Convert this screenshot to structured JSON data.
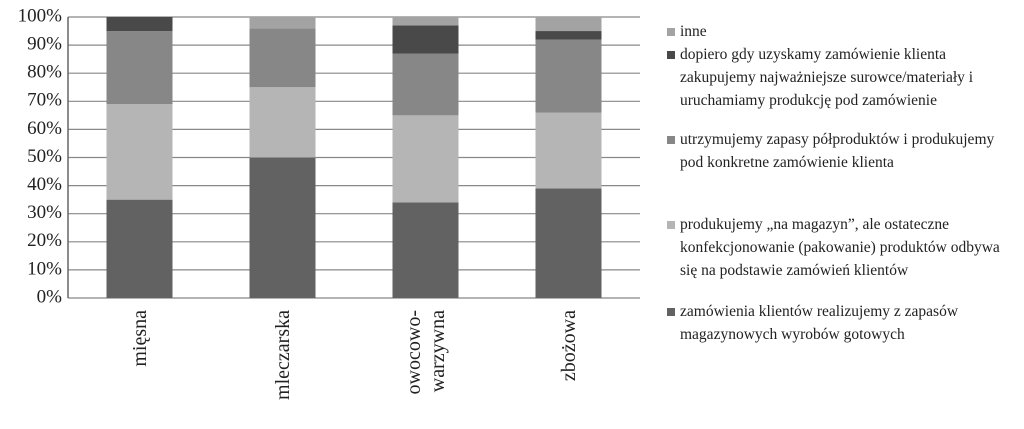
{
  "chart_data": {
    "type": "stacked_bar",
    "categories": [
      "mięsna",
      "mleczarska",
      "owocowo-warzywna",
      "zbożowa"
    ],
    "series": [
      {
        "name": "zamówienia klientów realizujemy z zapasów magazynowych wyrobów gotowych",
        "color": "#626262",
        "values": [
          35,
          50,
          34,
          39
        ]
      },
      {
        "name": "produkujemy „na magazyn”, ale ostateczne konfekcjonowanie (pakowanie) produktów odbywa się na podstawie zamówień klientów",
        "color": "#b5b5b5",
        "values": [
          34,
          25,
          31,
          27
        ]
      },
      {
        "name": "utrzymujemy zapasy półproduktów i produkujemy pod konkretne zamówienie klienta",
        "color": "#878787",
        "values": [
          26,
          21,
          22,
          26
        ]
      },
      {
        "name": "dopiero gdy uzyskamy zamówienie klienta zakupujemy najważniejsze surowce/materiały i uruchamiamy produkcję pod zamówienie",
        "color": "#494949",
        "values": [
          5,
          0,
          10,
          3
        ]
      },
      {
        "name": "inne",
        "color": "#a3a3a3",
        "values": [
          0,
          4,
          3,
          5
        ]
      }
    ],
    "ylim": [
      0,
      100
    ],
    "yticks": [
      {
        "value": 0,
        "label": "0%"
      },
      {
        "value": 10,
        "label": "10%"
      },
      {
        "value": 20,
        "label": "20%"
      },
      {
        "value": 30,
        "label": "30%"
      },
      {
        "value": 40,
        "label": "40%"
      },
      {
        "value": 50,
        "label": "50%"
      },
      {
        "value": 60,
        "label": "60%"
      },
      {
        "value": 70,
        "label": "70%"
      },
      {
        "value": 80,
        "label": "80%"
      },
      {
        "value": 90,
        "label": "90%"
      },
      {
        "value": 100,
        "label": "100%"
      }
    ],
    "grid": true
  }
}
